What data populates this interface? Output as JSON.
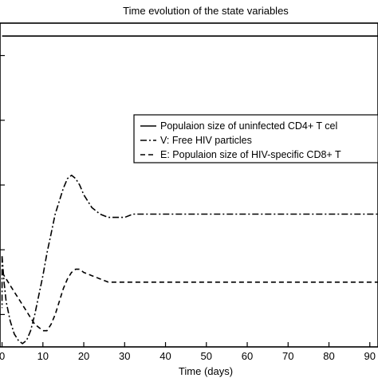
{
  "chart_data": {
    "type": "line",
    "title": "Time evolution of the state variables",
    "xlabel": "Time (days)",
    "ylabel": "",
    "xlim": [
      -0.5,
      92
    ],
    "ylim": [
      0,
      100
    ],
    "x_ticks": [
      0,
      10,
      20,
      30,
      40,
      50,
      60,
      70,
      80,
      90
    ],
    "x_tick_labels": [
      "0",
      "10",
      "20",
      "30",
      "40",
      "50",
      "60",
      "70",
      "80",
      "90"
    ],
    "y_ticks": [
      10,
      30,
      50,
      70,
      90
    ],
    "grid": false,
    "legend_position": "right",
    "series": [
      {
        "name": "Populaion size of uninfected CD4+ T cel",
        "style": "solid",
        "x": [
          0,
          92
        ],
        "y": [
          96,
          96
        ]
      },
      {
        "name": "V: Free HIV particles",
        "style": "dashdot",
        "x": [
          0,
          0.5,
          1,
          2,
          3,
          4,
          5,
          6,
          7,
          8,
          9,
          10,
          11,
          12,
          13,
          14,
          15,
          16,
          17,
          18,
          19,
          20,
          22,
          24,
          26,
          28,
          30,
          32,
          35,
          40,
          50,
          60,
          70,
          80,
          92
        ],
        "y": [
          28,
          20,
          14,
          8,
          4,
          2,
          1,
          2,
          5,
          10,
          16,
          22,
          29,
          35,
          41,
          45,
          49,
          52,
          53,
          52,
          50,
          47,
          43,
          41,
          40,
          40,
          40,
          41,
          41,
          41,
          41,
          41,
          41,
          41,
          41
        ]
      },
      {
        "name": "E: Populaion size of HIV-specific CD8+ T",
        "style": "dashed",
        "x": [
          0,
          1,
          2,
          3,
          4,
          5,
          6,
          7,
          8,
          9,
          10,
          11,
          12,
          13,
          14,
          15,
          16,
          17,
          18,
          19,
          20,
          22,
          24,
          26,
          28,
          30,
          33,
          36,
          40,
          50,
          60,
          70,
          80,
          92
        ],
        "y": [
          23,
          21,
          19,
          17,
          15,
          13,
          11,
          9,
          7,
          6,
          5,
          5,
          7,
          10,
          14,
          18,
          21,
          23,
          24,
          24,
          23,
          22,
          21,
          20,
          20,
          20,
          20,
          20,
          20,
          20,
          20,
          20,
          20,
          20
        ]
      }
    ]
  }
}
